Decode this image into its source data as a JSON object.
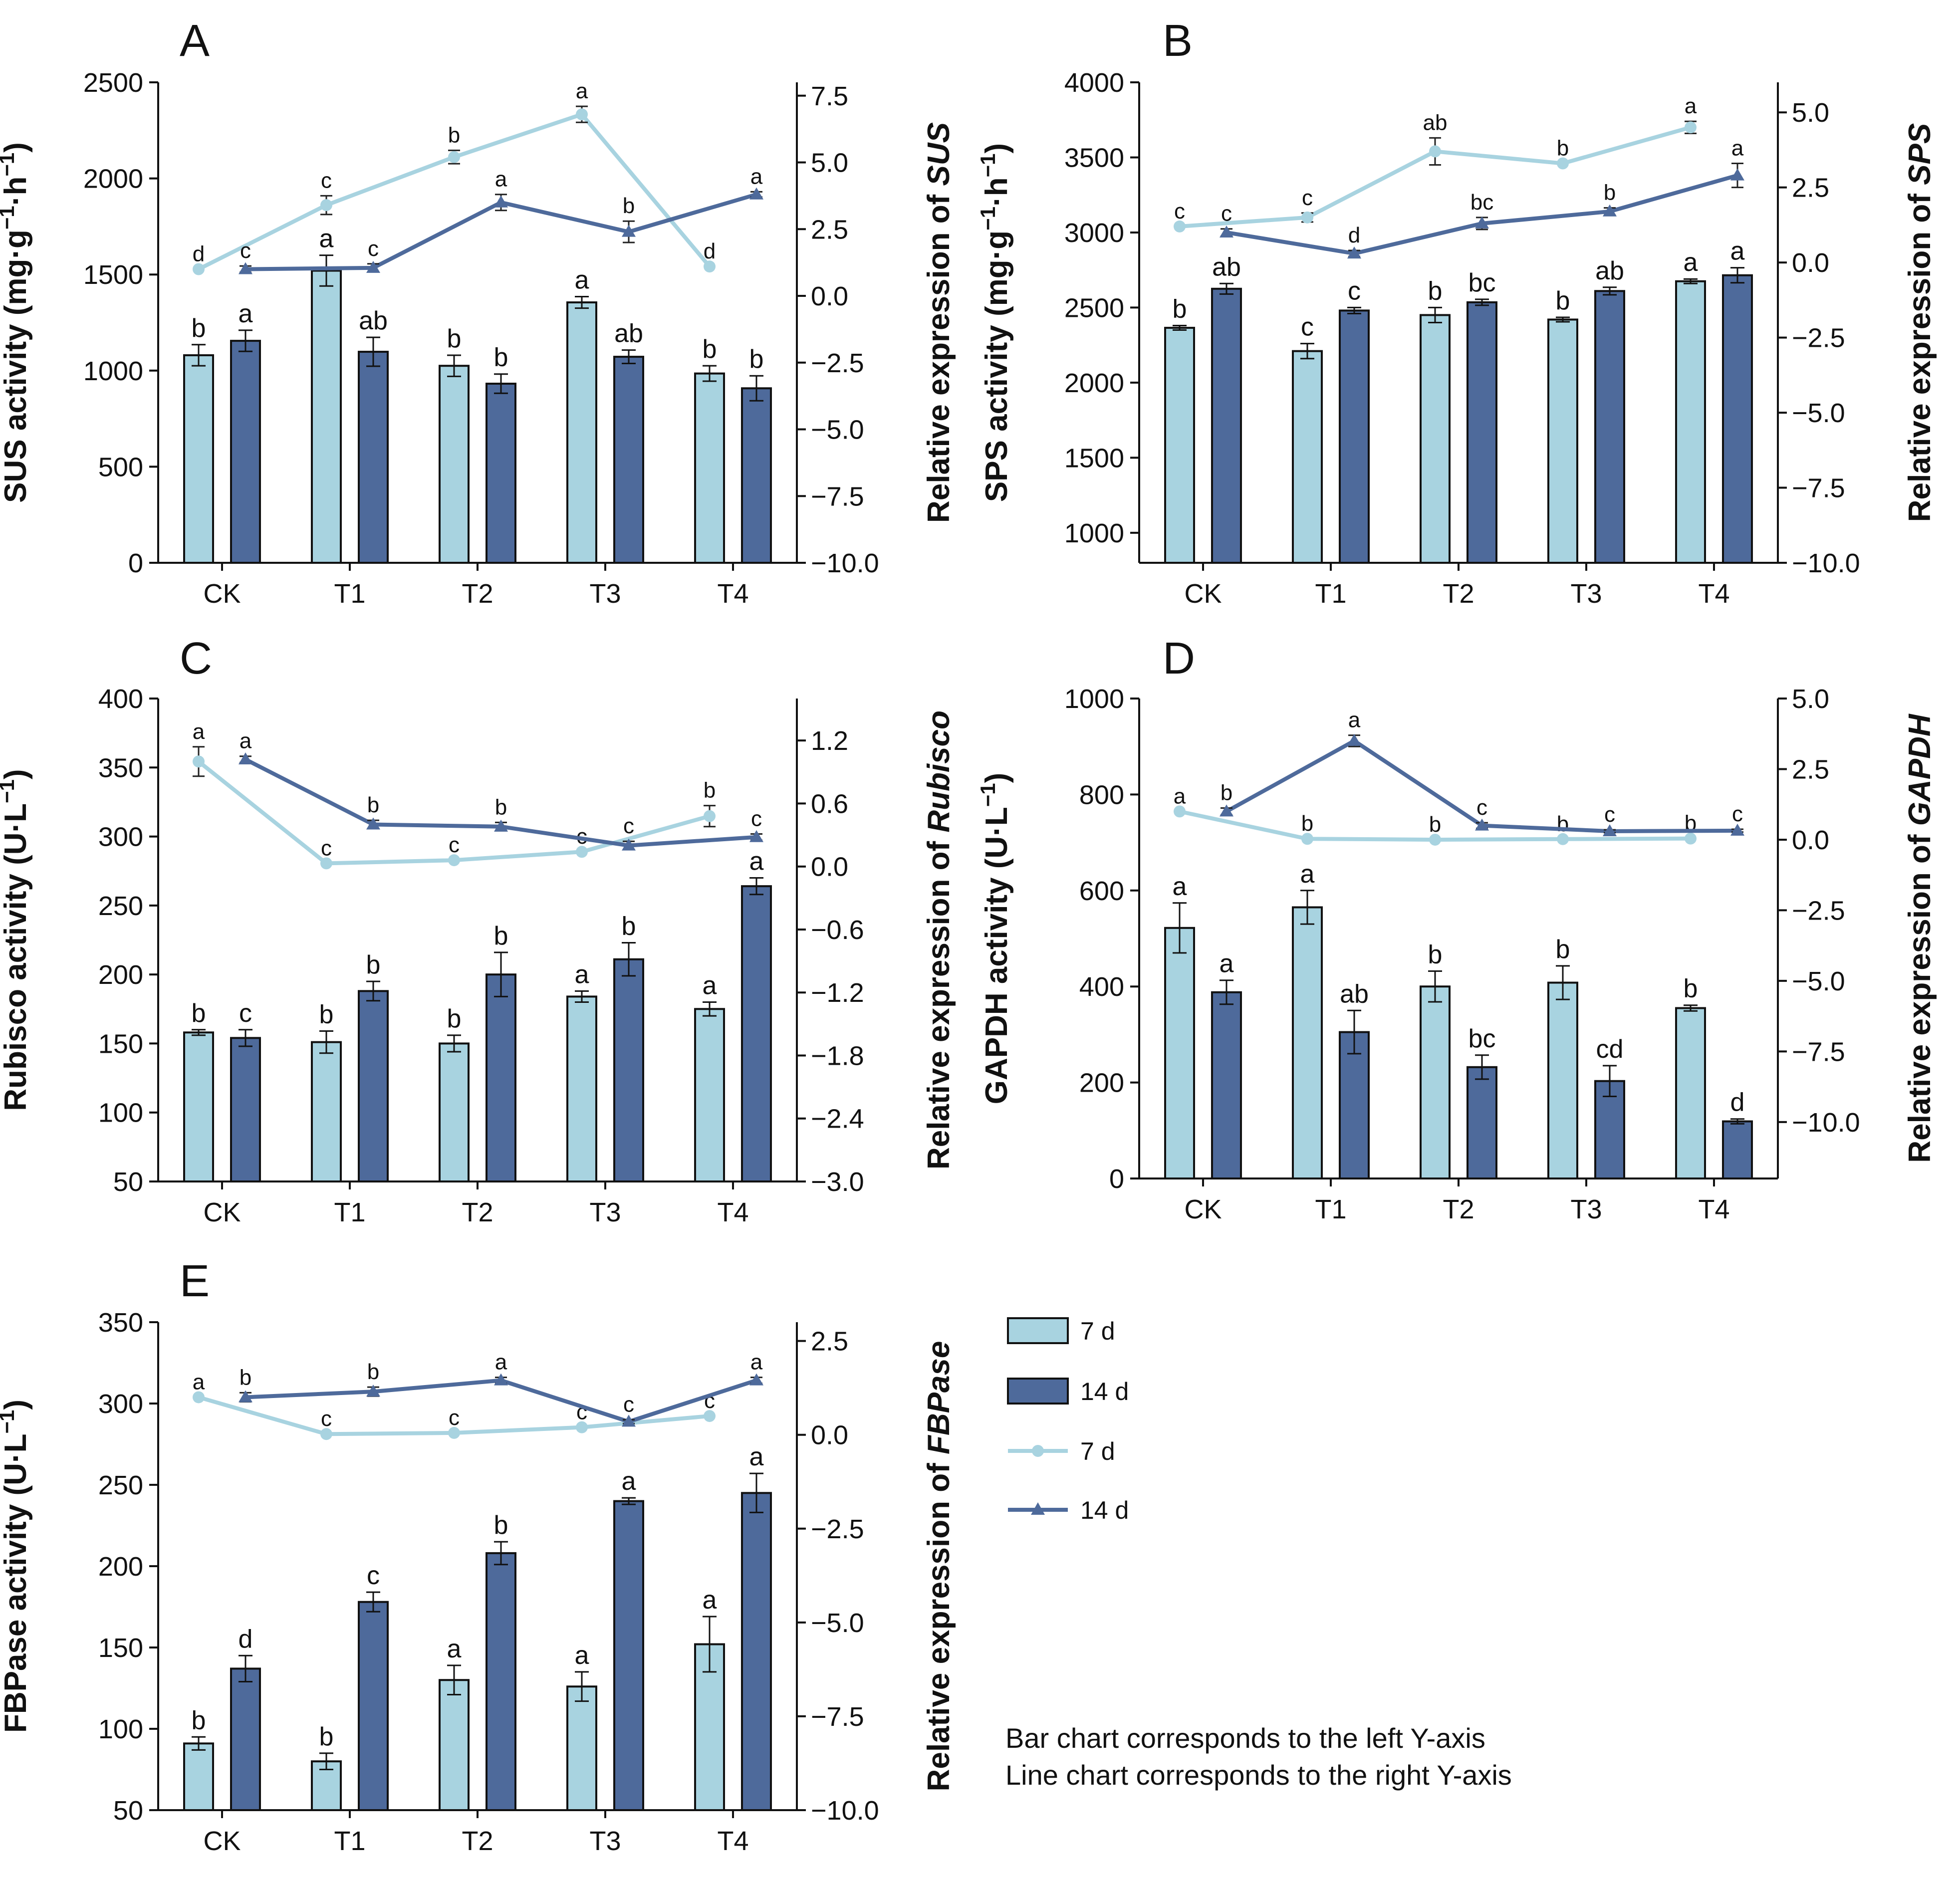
{
  "colors": {
    "light": "#A8D3E0",
    "dark": "#4E6A9B",
    "line_light": "#A8D3E0",
    "line_dark": "#4E6A9B"
  },
  "legend": {
    "items": [
      {
        "label": "7 d",
        "kind": "bar",
        "series": "light"
      },
      {
        "label": "14 d",
        "kind": "bar",
        "series": "dark"
      },
      {
        "label": "7 d",
        "kind": "line",
        "series": "light",
        "marker": "circle"
      },
      {
        "label": "14 d",
        "kind": "line",
        "series": "dark",
        "marker": "triangle"
      }
    ]
  },
  "note": {
    "line1": "Bar chart corresponds to the left Y-axis",
    "line2": "Line chart corresponds to the right Y-axis"
  },
  "chart_data": [
    {
      "id": "A",
      "panel_label": "A",
      "type": "bar+line",
      "categories": [
        "CK",
        "T1",
        "T2",
        "T3",
        "T4"
      ],
      "left_axis": {
        "label_main": "SUS activity (mg·g",
        "label_tail": "·h",
        "sup1": "−1",
        "sup2": "−1",
        "label_close": ")",
        "min": 0,
        "max": 2500,
        "ticks": [
          0,
          500,
          1000,
          1500,
          2000,
          2500
        ],
        "tick_labels": [
          "0",
          "500",
          "1000",
          "1500",
          "2000",
          "2500"
        ]
      },
      "right_axis": {
        "label_prefix": "Relative expression of ",
        "label_gene": "SUS",
        "min": -10,
        "max": 8,
        "ticks": [
          -10,
          -7.5,
          -5,
          -2.5,
          0,
          2.5,
          5,
          7.5
        ],
        "tick_labels": [
          "−10.0",
          "−7.5",
          "−5.0",
          "−2.5",
          "0.0",
          "2.5",
          "5.0",
          "7.5"
        ]
      },
      "bars": {
        "7 d": {
          "values": [
            1080,
            1520,
            1025,
            1355,
            985
          ],
          "errors": [
            55,
            80,
            55,
            30,
            40
          ],
          "letters": [
            "b",
            "a",
            "b",
            "a",
            "b"
          ]
        },
        "14 d": {
          "values": [
            1155,
            1098,
            932,
            1072,
            908
          ],
          "errors": [
            55,
            75,
            50,
            35,
            65
          ],
          "letters": [
            "a",
            "ab",
            "b",
            "ab",
            "b"
          ]
        }
      },
      "lines": {
        "7 d": {
          "values": [
            1.0,
            3.4,
            5.2,
            6.8,
            1.1
          ],
          "errors": [
            0,
            0.35,
            0.25,
            0.3,
            0
          ],
          "letters": [
            "d",
            "c",
            "b",
            "a",
            "d"
          ]
        },
        "14 d": {
          "values": [
            1.0,
            1.05,
            3.5,
            2.4,
            3.8
          ],
          "errors": [
            0.12,
            0.15,
            0.3,
            0.4,
            0.1
          ],
          "letters": [
            "c",
            "c",
            "a",
            "b",
            "a"
          ]
        }
      }
    },
    {
      "id": "B",
      "panel_label": "B",
      "type": "bar+line",
      "categories": [
        "CK",
        "T1",
        "T2",
        "T3",
        "T4"
      ],
      "left_axis": {
        "label_main": "SPS activity (mg·g",
        "label_tail": "·h",
        "sup1": "−1",
        "sup2": "−1",
        "label_close": ")",
        "min": 800,
        "max": 4000,
        "ticks": [
          1000,
          1500,
          2000,
          2500,
          3000,
          3500,
          4000
        ],
        "tick_labels": [
          "1000",
          "1500",
          "2000",
          "2500",
          "3000",
          "3500",
          "4000"
        ]
      },
      "right_axis": {
        "label_prefix": "Relative expression of ",
        "label_gene": "SPS",
        "min": -10,
        "max": 6,
        "ticks": [
          -10,
          -7.5,
          -5,
          -2.5,
          0,
          2.5,
          5
        ],
        "tick_labels": [
          "−10.0",
          "−7.5",
          "−5.0",
          "−2.5",
          "0.0",
          "2.5",
          "5.0"
        ]
      },
      "bars": {
        "7 d": {
          "values": [
            2365,
            2210,
            2450,
            2420,
            2675
          ],
          "errors": [
            15,
            50,
            50,
            15,
            15
          ],
          "letters": [
            "b",
            "c",
            "b",
            "b",
            "a"
          ]
        },
        "14 d": {
          "values": [
            2625,
            2480,
            2535,
            2610,
            2715
          ],
          "errors": [
            35,
            20,
            20,
            25,
            50
          ],
          "letters": [
            "ab",
            "c",
            "bc",
            "ab",
            "a"
          ]
        }
      },
      "lines": {
        "7 d": {
          "values": [
            1.2,
            1.5,
            3.7,
            3.3,
            4.5
          ],
          "errors": [
            0,
            0.15,
            0.45,
            0,
            0.2
          ],
          "letters": [
            "c",
            "c",
            "ab",
            "b",
            "a"
          ]
        },
        "14 d": {
          "values": [
            1.0,
            0.3,
            1.3,
            1.7,
            2.9
          ],
          "errors": [
            0.12,
            0.1,
            0.2,
            0.12,
            0.4
          ],
          "letters": [
            "c",
            "d",
            "bc",
            "b",
            "a"
          ]
        }
      }
    },
    {
      "id": "C",
      "panel_label": "C",
      "type": "bar+line",
      "categories": [
        "CK",
        "T1",
        "T2",
        "T3",
        "T4"
      ],
      "left_axis": {
        "label_main": "Rubisco activity (U·L",
        "label_tail": "",
        "sup1": "−1",
        "sup2": "",
        "label_close": ")",
        "min": 50,
        "max": 400,
        "ticks": [
          50,
          100,
          150,
          200,
          250,
          300,
          350,
          400
        ],
        "tick_labels": [
          "50",
          "100",
          "150",
          "200",
          "250",
          "300",
          "350",
          "400"
        ]
      },
      "right_axis": {
        "label_prefix": "Relative expression of ",
        "label_gene": "Rubisco",
        "min": -3.0,
        "max": 1.6,
        "ticks": [
          -3.0,
          -2.4,
          -1.8,
          -1.2,
          -0.6,
          0.0,
          0.6,
          1.2
        ],
        "tick_labels": [
          "−3.0",
          "−2.4",
          "−1.8",
          "−1.2",
          "−0.6",
          "0.0",
          "0.6",
          "1.2"
        ]
      },
      "bars": {
        "7 d": {
          "values": [
            158,
            151,
            150,
            184,
            175
          ],
          "errors": [
            2,
            8,
            6,
            4,
            5
          ],
          "letters": [
            "b",
            "b",
            "b",
            "a",
            "a"
          ]
        },
        "14 d": {
          "values": [
            154,
            188,
            200,
            211,
            264
          ],
          "errors": [
            6,
            7,
            16,
            12,
            6
          ],
          "letters": [
            "c",
            "b",
            "b",
            "b",
            "a"
          ]
        }
      },
      "lines": {
        "7 d": {
          "values": [
            1.0,
            0.03,
            0.06,
            0.14,
            0.48
          ],
          "errors": [
            0.14,
            0,
            0,
            0,
            0.1
          ],
          "letters": [
            "a",
            "c",
            "c",
            "c",
            "b"
          ]
        },
        "14 d": {
          "values": [
            1.02,
            0.4,
            0.38,
            0.2,
            0.28
          ],
          "errors": [
            0.03,
            0.04,
            0.04,
            0.04,
            0.03
          ],
          "letters": [
            "a",
            "b",
            "b",
            "c",
            "c"
          ]
        }
      }
    },
    {
      "id": "D",
      "panel_label": "D",
      "type": "bar+line",
      "categories": [
        "CK",
        "T1",
        "T2",
        "T3",
        "T4"
      ],
      "left_axis": {
        "label_main": "GAPDH activity (U·L",
        "label_tail": "",
        "sup1": "−1",
        "sup2": "",
        "label_close": ")",
        "min": 0,
        "max": 1000,
        "ticks": [
          0,
          200,
          400,
          600,
          800,
          1000
        ],
        "tick_labels": [
          "0",
          "200",
          "400",
          "600",
          "800",
          "1000"
        ]
      },
      "right_axis": {
        "label_prefix": "Relative expression of ",
        "label_gene": "GAPDH",
        "min": -12,
        "max": 5,
        "ticks": [
          -10,
          -7.5,
          -5,
          -2.5,
          0,
          2.5,
          5
        ],
        "tick_labels": [
          "−10.0",
          "−7.5",
          "−5.0",
          "−2.5",
          "0.0",
          "2.5",
          "5.0"
        ]
      },
      "bars": {
        "7 d": {
          "values": [
            522,
            565,
            400,
            408,
            355
          ],
          "errors": [
            52,
            35,
            32,
            35,
            6
          ],
          "letters": [
            "a",
            "a",
            "b",
            "b",
            "b"
          ]
        },
        "14 d": {
          "values": [
            388,
            305,
            232,
            203,
            119
          ],
          "errors": [
            25,
            45,
            25,
            32,
            5
          ],
          "letters": [
            "a",
            "ab",
            "bc",
            "cd",
            "d"
          ]
        }
      },
      "lines": {
        "7 d": {
          "values": [
            1.0,
            0.03,
            0.0,
            0.02,
            0.04
          ],
          "errors": [
            0,
            0,
            0,
            0,
            0
          ],
          "letters": [
            "a",
            "b",
            "b",
            "b",
            "b"
          ]
        },
        "14 d": {
          "values": [
            1.0,
            3.5,
            0.5,
            0.3,
            0.32
          ],
          "errors": [
            0.12,
            0.2,
            0.1,
            0.05,
            0.05
          ],
          "letters": [
            "b",
            "a",
            "c",
            "c",
            "c"
          ]
        }
      }
    },
    {
      "id": "E",
      "panel_label": "E",
      "type": "bar+line",
      "categories": [
        "CK",
        "T1",
        "T2",
        "T3",
        "T4"
      ],
      "left_axis": {
        "label_main": "FBPase activity (U·L",
        "label_tail": "",
        "sup1": "−1",
        "sup2": "",
        "label_close": ")",
        "min": 50,
        "max": 350,
        "ticks": [
          50,
          100,
          150,
          200,
          250,
          300,
          350
        ],
        "tick_labels": [
          "50",
          "100",
          "150",
          "200",
          "250",
          "300",
          "350"
        ]
      },
      "right_axis": {
        "label_prefix": "Relative expression of ",
        "label_gene": "FBPase",
        "min": -10,
        "max": 3,
        "ticks": [
          -10,
          -7.5,
          -5,
          -2.5,
          0,
          2.5
        ],
        "tick_labels": [
          "−10.0",
          "−7.5",
          "−5.0",
          "−2.5",
          "0.0",
          "2.5"
        ]
      },
      "bars": {
        "7 d": {
          "values": [
            91,
            80,
            130,
            126,
            152
          ],
          "errors": [
            4,
            5,
            9,
            9,
            17
          ],
          "letters": [
            "b",
            "b",
            "a",
            "a",
            "a"
          ]
        },
        "14 d": {
          "values": [
            137,
            178,
            208,
            240,
            245
          ],
          "errors": [
            8,
            6,
            7,
            2,
            12
          ],
          "letters": [
            "d",
            "c",
            "b",
            "a",
            "a"
          ]
        }
      },
      "lines": {
        "7 d": {
          "values": [
            1.0,
            0.02,
            0.05,
            0.2,
            0.5
          ],
          "errors": [
            0,
            0,
            0,
            0,
            0
          ],
          "letters": [
            "a",
            "c",
            "c",
            "c",
            "c"
          ]
        },
        "14 d": {
          "values": [
            1.0,
            1.15,
            1.45,
            0.35,
            1.45
          ],
          "errors": [
            0.12,
            0.12,
            0.08,
            0.05,
            0.08
          ],
          "letters": [
            "b",
            "b",
            "a",
            "c",
            "a"
          ]
        }
      }
    }
  ]
}
